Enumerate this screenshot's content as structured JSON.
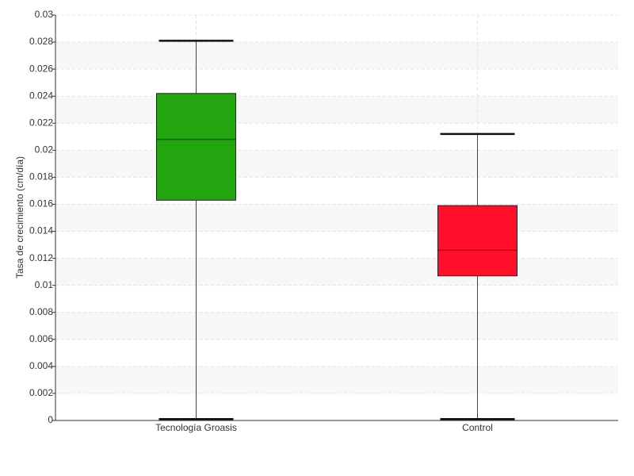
{
  "chart_data": {
    "type": "box",
    "y_label": "Tasa de crecimiento (cm/día)",
    "categories": [
      "Tecnología Groasis",
      "Control"
    ],
    "boxes": [
      {
        "min": 0.0001,
        "q1": 0.0163,
        "median": 0.0208,
        "q3": 0.0242,
        "max": 0.0281,
        "color": "#22a50f"
      },
      {
        "min": 0.0001,
        "q1": 0.0107,
        "median": 0.0126,
        "q3": 0.0159,
        "max": 0.0212,
        "color": "#ff0f2a"
      }
    ],
    "ylim": [
      0,
      0.03
    ],
    "yticks": [
      0,
      0.002,
      0.004,
      0.006,
      0.008,
      0.01,
      0.012,
      0.014,
      0.016,
      0.018,
      0.02,
      0.022,
      0.024,
      0.026,
      0.028,
      0.03
    ],
    "grid": true
  }
}
